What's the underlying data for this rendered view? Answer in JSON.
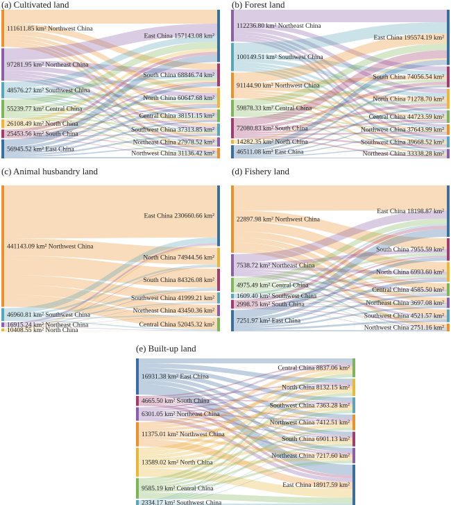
{
  "colors": {
    "Northwest China": "#e8922e",
    "Northeast China": "#8b5fa8",
    "Southwest China": "#5aa6b8",
    "Central China": "#7fb55a",
    "North China": "#e8b83c",
    "South China": "#a23c6e",
    "East China": "#3a6e9e"
  },
  "unit": "km²",
  "panels": [
    {
      "title": "(a) Cultivated land",
      "left": [
        {
          "region": "Northwest China",
          "value": "111611.85"
        },
        {
          "region": "Northeast China",
          "value": "97281.95"
        },
        {
          "region": "Southwest China",
          "value": "48576.27"
        },
        {
          "region": "Central China",
          "value": "55239.77"
        },
        {
          "region": "North China",
          "value": "26108.49"
        },
        {
          "region": "South China",
          "value": "25453.56"
        },
        {
          "region": "East China",
          "value": "56945.52"
        }
      ],
      "right": [
        {
          "region": "East China",
          "value": "157143.08"
        },
        {
          "region": "South China",
          "value": "68846.74"
        },
        {
          "region": "North China",
          "value": "60647.68"
        },
        {
          "region": "Central China",
          "value": "38151.15"
        },
        {
          "region": "Southwest China",
          "value": "37313.85"
        },
        {
          "region": "Northeast China",
          "value": "27978.52"
        },
        {
          "region": "Northwest China",
          "value": "31136.42"
        }
      ]
    },
    {
      "title": "(b) Forest land",
      "left": [
        {
          "region": "Northeast China",
          "value": "112236.80"
        },
        {
          "region": "Southwest China",
          "value": "100149.51"
        },
        {
          "region": "Northwest China",
          "value": "91144.90"
        },
        {
          "region": "Central China",
          "value": "59878.33"
        },
        {
          "region": "South China",
          "value": "72080.83"
        },
        {
          "region": "North China",
          "value": "14282.35"
        },
        {
          "region": "East China",
          "value": "46511.08"
        }
      ],
      "right": [
        {
          "region": "East China",
          "value": "195574.19"
        },
        {
          "region": "South China",
          "value": "74056.54"
        },
        {
          "region": "North China",
          "value": "71278.70"
        },
        {
          "region": "Central China",
          "value": "44723.59"
        },
        {
          "region": "Northwest China",
          "value": "37643.99"
        },
        {
          "region": "Southwest China",
          "value": "39668.52"
        },
        {
          "region": "Northeast China",
          "value": "33338.28"
        }
      ]
    },
    {
      "title": "(c) Animal husbandry land",
      "left": [
        {
          "region": "Northwest China",
          "value": "441143.09"
        },
        {
          "region": "Southwest China",
          "value": "46960.81"
        },
        {
          "region": "Northeast China",
          "value": "16915.24"
        },
        {
          "region": "North China",
          "value": "10408.55"
        }
      ],
      "right": [
        {
          "region": "East China",
          "value": "230660.66"
        },
        {
          "region": "North China",
          "value": "74944.56"
        },
        {
          "region": "South China",
          "value": "84326.08"
        },
        {
          "region": "Southwest China",
          "value": "41999.21"
        },
        {
          "region": "Northeast China",
          "value": "43450.36"
        },
        {
          "region": "Central China",
          "value": "52045.32"
        }
      ]
    },
    {
      "title": "(d) Fishery land",
      "left": [
        {
          "region": "Northwest China",
          "value": "22897.98"
        },
        {
          "region": "Northeast China",
          "value": "7538.72"
        },
        {
          "region": "Central China",
          "value": "4975.49"
        },
        {
          "region": "Southwest China",
          "value": "1609.40"
        },
        {
          "region": "South China",
          "value": "2998.75"
        },
        {
          "region": "East China",
          "value": "7251.97"
        }
      ],
      "right": [
        {
          "region": "East China",
          "value": "18198.87"
        },
        {
          "region": "South China",
          "value": "7955.59"
        },
        {
          "region": "North China",
          "value": "6993.60"
        },
        {
          "region": "Central China",
          "value": "4585.50"
        },
        {
          "region": "Northeast China",
          "value": "3697.08"
        },
        {
          "region": "Southwest China",
          "value": "4521.57"
        },
        {
          "region": "Northwest China",
          "value": "2751.16"
        }
      ]
    },
    {
      "title": "(e) Built-up land",
      "left": [
        {
          "region": "East China",
          "value": "16931.38"
        },
        {
          "region": "South China",
          "value": "4665.50"
        },
        {
          "region": "Northeast China",
          "value": "6301.05"
        },
        {
          "region": "Northwest China",
          "value": "11375.01"
        },
        {
          "region": "North China",
          "value": "13589.02"
        },
        {
          "region": "Central China",
          "value": "9585.19"
        },
        {
          "region": "Southwest China",
          "value": "2334.17"
        }
      ],
      "right": [
        {
          "region": "Central China",
          "value": "8837.06"
        },
        {
          "region": "North China",
          "value": "8132.15"
        },
        {
          "region": "Southwest China",
          "value": "7363.28"
        },
        {
          "region": "Northwest China",
          "value": "7412.51"
        },
        {
          "region": "South China",
          "value": "6901.13"
        },
        {
          "region": "Northeast China",
          "value": "7217.60"
        },
        {
          "region": "East China",
          "value": "18917.59"
        }
      ]
    }
  ]
}
